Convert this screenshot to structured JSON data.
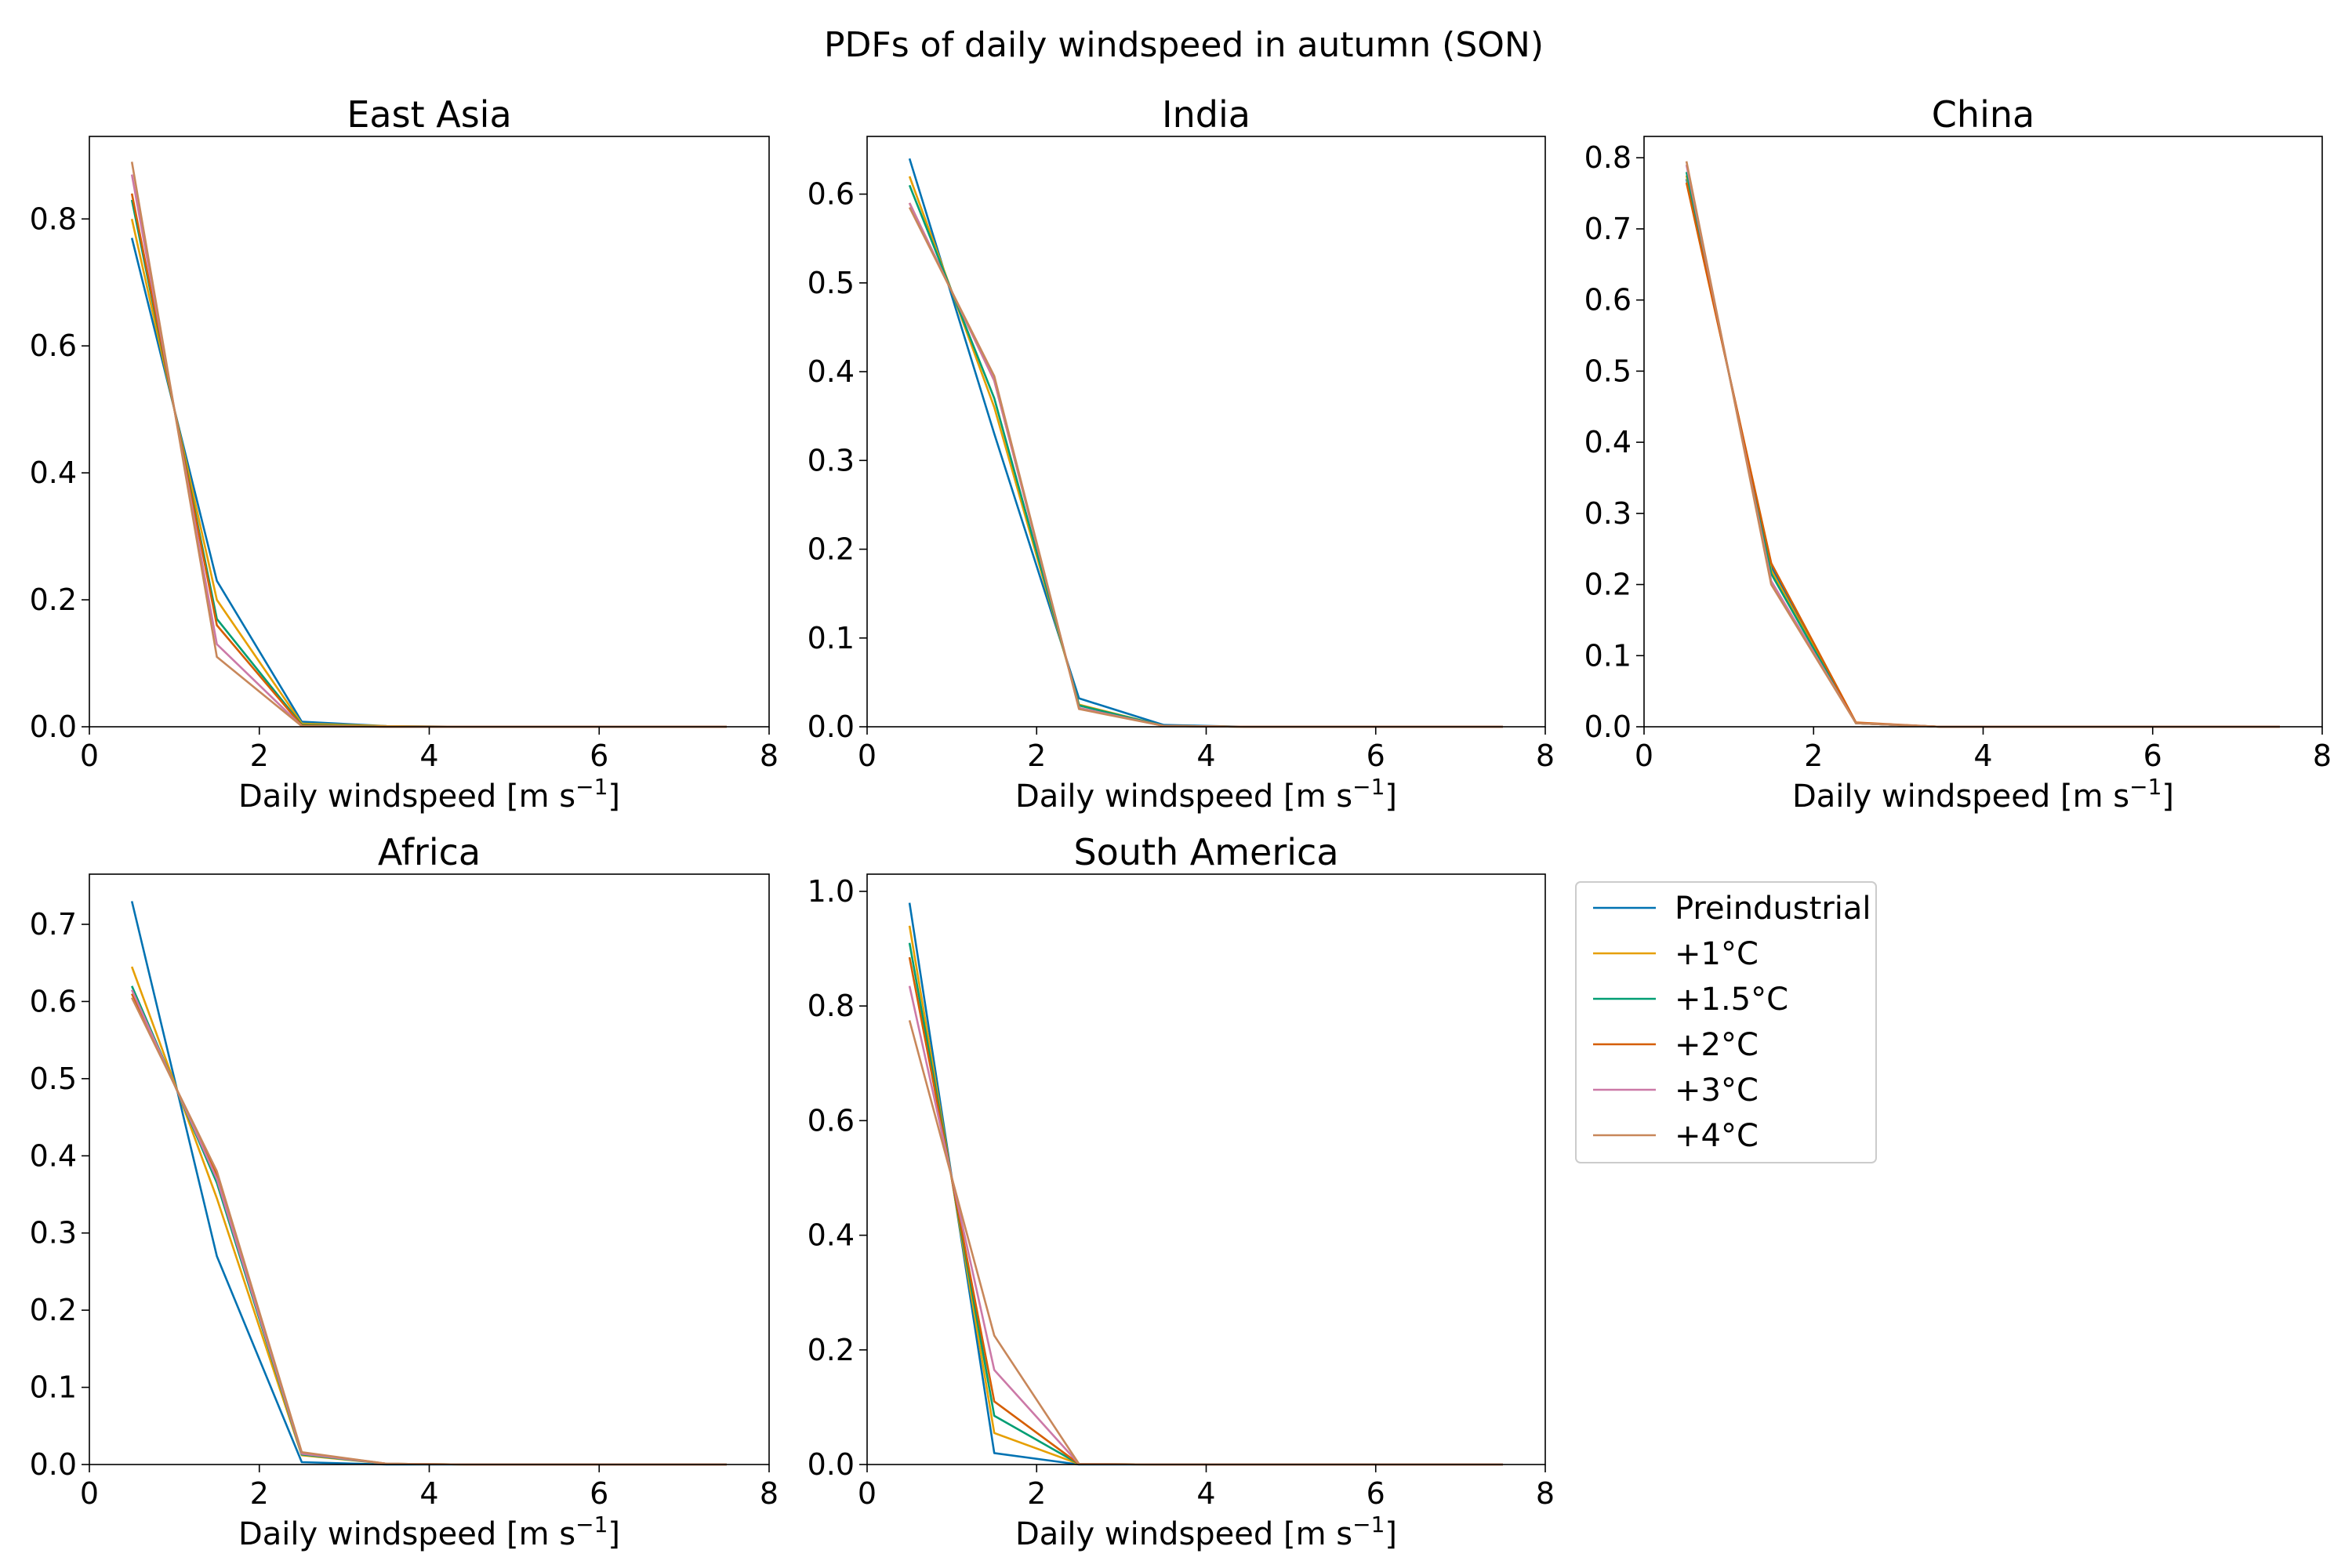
{
  "figure_title": "PDFs of daily windspeed in autumn (SON)",
  "legend": {
    "placement": "right of South America panel",
    "entries": [
      {
        "label": "Preindustrial",
        "color": "#0072B2"
      },
      {
        "label": "+1°C",
        "color": "#E69F00"
      },
      {
        "label": "+1.5°C",
        "color": "#009E73"
      },
      {
        "label": "+2°C",
        "color": "#D55E00"
      },
      {
        "label": "+3°C",
        "color": "#CC79A7"
      },
      {
        "label": "+4°C",
        "color": "#C8875A"
      }
    ]
  },
  "chart_data": [
    {
      "type": "line",
      "title": "East Asia",
      "xlabel": "Daily windspeed [m s",
      "xlabel_sup": "−1",
      "xlabel_end": "]",
      "ylabel": "",
      "xlim": [
        0,
        8
      ],
      "ylim": [
        0,
        0.93
      ],
      "xticks": [
        "0",
        "2",
        "4",
        "6",
        "8"
      ],
      "yticks": [
        "0.0",
        "0.2",
        "0.4",
        "0.6",
        "0.8"
      ],
      "x": [
        0.5,
        1.5,
        2.5,
        3.5,
        4.5,
        5.5,
        6.5,
        7.5
      ],
      "series": [
        {
          "name": "Preindustrial",
          "values": [
            0.77,
            0.23,
            0.008,
            0.001,
            0.0,
            0.0,
            0.0,
            0.0
          ]
        },
        {
          "name": "+1°C",
          "values": [
            0.8,
            0.2,
            0.005,
            0.001,
            0.0,
            0.0,
            0.0,
            0.0
          ]
        },
        {
          "name": "+1.5°C",
          "values": [
            0.83,
            0.17,
            0.003,
            0.0,
            0.0,
            0.0,
            0.0,
            0.0
          ]
        },
        {
          "name": "+2°C",
          "values": [
            0.84,
            0.16,
            0.002,
            0.0,
            0.0,
            0.0,
            0.0,
            0.0
          ]
        },
        {
          "name": "+3°C",
          "values": [
            0.87,
            0.13,
            0.001,
            0.0,
            0.0,
            0.0,
            0.0,
            0.0
          ]
        },
        {
          "name": "+4°C",
          "values": [
            0.89,
            0.11,
            0.001,
            0.0,
            0.0,
            0.0,
            0.0,
            0.0
          ]
        }
      ]
    },
    {
      "type": "line",
      "title": "India",
      "xlabel": "Daily windspeed [m s",
      "xlabel_sup": "−1",
      "xlabel_end": "]",
      "ylabel": "",
      "xlim": [
        0,
        8
      ],
      "ylim": [
        0,
        0.665
      ],
      "xticks": [
        "0",
        "2",
        "4",
        "6",
        "8"
      ],
      "yticks": [
        "0.0",
        "0.1",
        "0.2",
        "0.3",
        "0.4",
        "0.5",
        "0.6"
      ],
      "x": [
        0.5,
        1.5,
        2.5,
        3.5,
        4.5,
        5.5,
        6.5,
        7.5
      ],
      "series": [
        {
          "name": "Preindustrial",
          "values": [
            0.64,
            0.33,
            0.032,
            0.002,
            0.0,
            0.0,
            0.0,
            0.0
          ]
        },
        {
          "name": "+1°C",
          "values": [
            0.62,
            0.36,
            0.025,
            0.001,
            0.0,
            0.0,
            0.0,
            0.0
          ]
        },
        {
          "name": "+1.5°C",
          "values": [
            0.61,
            0.37,
            0.024,
            0.001,
            0.0,
            0.0,
            0.0,
            0.0
          ]
        },
        {
          "name": "+2°C",
          "values": [
            0.59,
            0.39,
            0.021,
            0.001,
            0.0,
            0.0,
            0.0,
            0.0
          ]
        },
        {
          "name": "+3°C",
          "values": [
            0.59,
            0.39,
            0.021,
            0.001,
            0.0,
            0.0,
            0.0,
            0.0
          ]
        },
        {
          "name": "+4°C",
          "values": [
            0.585,
            0.395,
            0.02,
            0.001,
            0.0,
            0.0,
            0.0,
            0.0
          ]
        }
      ]
    },
    {
      "type": "line",
      "title": "China",
      "xlabel": "Daily windspeed [m s",
      "xlabel_sup": "−1",
      "xlabel_end": "]",
      "ylabel": "",
      "xlim": [
        0,
        8
      ],
      "ylim": [
        0,
        0.83
      ],
      "xticks": [
        "0",
        "2",
        "4",
        "6",
        "8"
      ],
      "yticks": [
        "0.0",
        "0.1",
        "0.2",
        "0.3",
        "0.4",
        "0.5",
        "0.6",
        "0.7",
        "0.8"
      ],
      "x": [
        0.5,
        1.5,
        2.5,
        3.5,
        4.5,
        5.5,
        6.5,
        7.5
      ],
      "series": [
        {
          "name": "Preindustrial",
          "values": [
            0.77,
            0.225,
            0.005,
            0.0,
            0.0,
            0.0,
            0.0,
            0.0
          ]
        },
        {
          "name": "+1°C",
          "values": [
            0.775,
            0.22,
            0.005,
            0.0,
            0.0,
            0.0,
            0.0,
            0.0
          ]
        },
        {
          "name": "+1.5°C",
          "values": [
            0.78,
            0.215,
            0.005,
            0.0,
            0.0,
            0.0,
            0.0,
            0.0
          ]
        },
        {
          "name": "+2°C",
          "values": [
            0.765,
            0.23,
            0.006,
            0.0,
            0.0,
            0.0,
            0.0,
            0.0
          ]
        },
        {
          "name": "+3°C",
          "values": [
            0.79,
            0.205,
            0.005,
            0.0,
            0.0,
            0.0,
            0.0,
            0.0
          ]
        },
        {
          "name": "+4°C",
          "values": [
            0.795,
            0.2,
            0.005,
            0.0,
            0.0,
            0.0,
            0.0,
            0.0
          ]
        }
      ]
    },
    {
      "type": "line",
      "title": "Africa",
      "xlabel": "Daily windspeed [m s",
      "xlabel_sup": "−1",
      "xlabel_end": "]",
      "ylabel": "",
      "xlim": [
        0,
        8
      ],
      "ylim": [
        0,
        0.765
      ],
      "xticks": [
        "0",
        "2",
        "4",
        "6",
        "8"
      ],
      "yticks": [
        "0.0",
        "0.1",
        "0.2",
        "0.3",
        "0.4",
        "0.5",
        "0.6",
        "0.7"
      ],
      "x": [
        0.5,
        1.5,
        2.5,
        3.5,
        4.5,
        5.5,
        6.5,
        7.5
      ],
      "series": [
        {
          "name": "Preindustrial",
          "values": [
            0.73,
            0.27,
            0.003,
            0.0,
            0.0,
            0.0,
            0.0,
            0.0
          ]
        },
        {
          "name": "+1°C",
          "values": [
            0.645,
            0.345,
            0.012,
            0.001,
            0.0,
            0.0,
            0.0,
            0.0
          ]
        },
        {
          "name": "+1.5°C",
          "values": [
            0.62,
            0.365,
            0.013,
            0.001,
            0.0,
            0.0,
            0.0,
            0.0
          ]
        },
        {
          "name": "+2°C",
          "values": [
            0.61,
            0.375,
            0.015,
            0.001,
            0.0,
            0.0,
            0.0,
            0.0
          ]
        },
        {
          "name": "+3°C",
          "values": [
            0.615,
            0.37,
            0.014,
            0.001,
            0.0,
            0.0,
            0.0,
            0.0
          ]
        },
        {
          "name": "+4°C",
          "values": [
            0.605,
            0.38,
            0.016,
            0.001,
            0.0,
            0.0,
            0.0,
            0.0
          ]
        }
      ]
    },
    {
      "type": "line",
      "title": "South America",
      "xlabel": "Daily windspeed [m s",
      "xlabel_sup": "−1",
      "xlabel_end": "]",
      "ylabel": "",
      "xlim": [
        0,
        8
      ],
      "ylim": [
        0,
        1.03
      ],
      "xticks": [
        "0",
        "2",
        "4",
        "6",
        "8"
      ],
      "yticks": [
        "0.0",
        "0.2",
        "0.4",
        "0.6",
        "0.8",
        "1.0"
      ],
      "x": [
        0.5,
        1.5,
        2.5,
        3.5,
        4.5,
        5.5,
        6.5,
        7.5
      ],
      "series": [
        {
          "name": "Preindustrial",
          "values": [
            0.98,
            0.02,
            0.0,
            0.0,
            0.0,
            0.0,
            0.0,
            0.0
          ]
        },
        {
          "name": "+1°C",
          "values": [
            0.94,
            0.055,
            0.001,
            0.0,
            0.0,
            0.0,
            0.0,
            0.0
          ]
        },
        {
          "name": "+1.5°C",
          "values": [
            0.91,
            0.085,
            0.001,
            0.0,
            0.0,
            0.0,
            0.0,
            0.0
          ]
        },
        {
          "name": "+2°C",
          "values": [
            0.885,
            0.11,
            0.001,
            0.0,
            0.0,
            0.0,
            0.0,
            0.0
          ]
        },
        {
          "name": "+3°C",
          "values": [
            0.835,
            0.165,
            0.001,
            0.0,
            0.0,
            0.0,
            0.0,
            0.0
          ]
        },
        {
          "name": "+4°C",
          "values": [
            0.775,
            0.225,
            0.001,
            0.0,
            0.0,
            0.0,
            0.0,
            0.0
          ]
        }
      ]
    }
  ]
}
